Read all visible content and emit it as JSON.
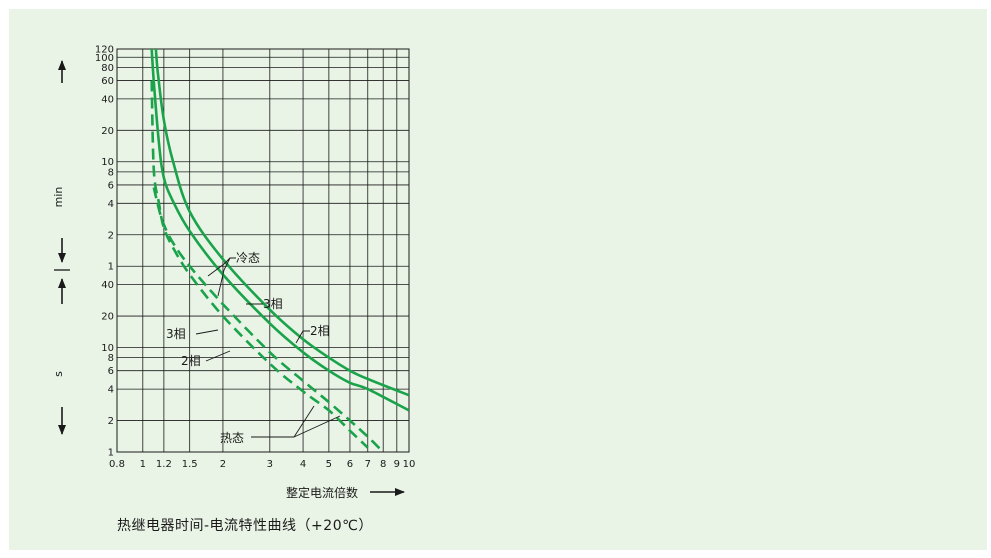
{
  "chart_data": {
    "type": "line",
    "title": "热继电器时间-电流特性曲线（+20℃）",
    "xlabel": "整定电流倍数",
    "x_scale": "log",
    "xlim": [
      0.8,
      10
    ],
    "x_ticks": [
      0.8,
      1,
      1.2,
      1.5,
      2,
      3,
      4,
      5,
      6,
      7,
      8,
      9,
      10
    ],
    "x_tick_labels": [
      "0.8",
      "1",
      "1.2",
      "1.5",
      "2",
      "3",
      "4",
      "5",
      "6",
      "7",
      "8",
      "9",
      "10"
    ],
    "y_scale": "log",
    "ylim_seconds": [
      1,
      7200
    ],
    "y_unit_labels": {
      "upper": "min",
      "lower": "s"
    },
    "y_ticks_min": [
      1,
      2,
      4,
      6,
      8,
      10,
      20,
      40,
      60,
      80,
      100,
      120
    ],
    "y_ticks_s": [
      1,
      2,
      4,
      6,
      8,
      10,
      20,
      40
    ],
    "grid": true,
    "line_color": "#1aa34a",
    "series": [
      {
        "name": "冷态 3相",
        "style": "solid",
        "x": [
          1.12,
          1.14,
          1.2,
          1.3,
          1.5,
          2,
          3,
          4,
          5,
          6,
          7,
          10
        ],
        "y_seconds": [
          7200,
          4200,
          1500,
          600,
          200,
          70,
          23,
          12,
          8,
          6,
          5,
          3.5
        ]
      },
      {
        "name": "冷态 2相",
        "style": "solid",
        "x": [
          1.08,
          1.1,
          1.15,
          1.2,
          1.3,
          1.5,
          2,
          3,
          4,
          5,
          6,
          7,
          10
        ],
        "y_seconds": [
          7200,
          3500,
          900,
          420,
          250,
          130,
          50,
          17,
          9,
          6,
          4.6,
          4,
          2.5
        ]
      },
      {
        "name": "热态 3相",
        "style": "dashed",
        "x": [
          1.08,
          1.1,
          1.15,
          1.2,
          1.3,
          1.5,
          2,
          3,
          4,
          5,
          6,
          7
        ],
        "y_seconds": [
          3600,
          500,
          240,
          140,
          90,
          50,
          20,
          7,
          3.8,
          2.5,
          1.6,
          1.1
        ]
      },
      {
        "name": "热态 2相",
        "style": "dashed",
        "x": [
          1.1,
          1.15,
          1.2,
          1.3,
          1.5,
          2,
          3,
          4,
          5,
          6,
          7,
          8
        ],
        "y_seconds": [
          340,
          210,
          150,
          100,
          60,
          26,
          9,
          4.8,
          3,
          2,
          1.4,
          1
        ]
      }
    ],
    "annotations": [
      "冷态",
      "3相",
      "2相",
      "3相",
      "2相",
      "热态"
    ],
    "caption": "热继电器时间-电流特性曲线（+20℃）"
  }
}
